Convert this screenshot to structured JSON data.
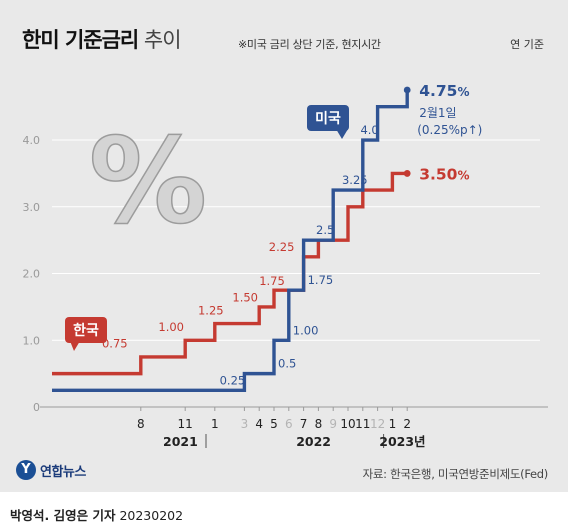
{
  "title": {
    "strong": "한미 기준금리",
    "light": "추이"
  },
  "note": "※미국 금리 상단 기준, 현지시간",
  "unit": "연 기준",
  "percent_symbol": "%",
  "source": "자료: 한국은행, 미국연방준비제도(Fed)",
  "logo": {
    "mark": "Y",
    "text": "연합뉴스"
  },
  "byline": {
    "name": "박영석. 김영은 기자",
    "date": "20230202"
  },
  "colors": {
    "us": "#2f5393",
    "korea": "#c53a31",
    "grid": "#ffffff",
    "background": "#e9e9e9"
  },
  "chart_data": {
    "type": "line",
    "step": true,
    "ylim": [
      0,
      4.75
    ],
    "yticks": [
      "0",
      "1.0",
      "2.0",
      "3.0",
      "4.0"
    ],
    "ytick_values": [
      0,
      1,
      2,
      3,
      4
    ],
    "x_axis": {
      "ticks": [
        {
          "label": "8",
          "month": "2021-08",
          "muted": false
        },
        {
          "label": "11",
          "month": "2021-11",
          "muted": false
        },
        {
          "label": "1",
          "month": "2022-01",
          "muted": false
        },
        {
          "label": "3",
          "month": "2022-03",
          "muted": true
        },
        {
          "label": "4",
          "month": "2022-04",
          "muted": false
        },
        {
          "label": "5",
          "month": "2022-05",
          "muted": false
        },
        {
          "label": "6",
          "month": "2022-06",
          "muted": true
        },
        {
          "label": "7",
          "month": "2022-07",
          "muted": false
        },
        {
          "label": "8",
          "month": "2022-08",
          "muted": false
        },
        {
          "label": "9",
          "month": "2022-09",
          "muted": true
        },
        {
          "label": "10",
          "month": "2022-10",
          "muted": false
        },
        {
          "label": "11",
          "month": "2022-11",
          "muted": false
        },
        {
          "label": "12",
          "month": "2022-12",
          "muted": true
        },
        {
          "label": "1",
          "month": "2023-01",
          "muted": false
        },
        {
          "label": "2",
          "month": "2023-02",
          "muted": false
        }
      ],
      "years": [
        {
          "label": "2021",
          "month": "2021-10"
        },
        {
          "label": "2022",
          "month": "2022-07"
        },
        {
          "label": "2023년",
          "month": "2023-01"
        }
      ]
    },
    "series": [
      {
        "name": "미국",
        "color": "#2f5393",
        "points": [
          {
            "x": "2021-02",
            "y": 0.25
          },
          {
            "x": "2022-03",
            "y": 0.5,
            "label": "0.25"
          },
          {
            "x": "2022-05",
            "y": 1.0,
            "label": "0.5"
          },
          {
            "x": "2022-06",
            "y": 1.75,
            "label": "1.00"
          },
          {
            "x": "2022-07",
            "y": 2.5,
            "label": "1.75"
          },
          {
            "x": "2022-09",
            "y": 3.25,
            "label": "2.5"
          },
          {
            "x": "2022-11",
            "y": 4.0,
            "label": "3.25"
          },
          {
            "x": "2022-12",
            "y": 4.5,
            "label": "4.0"
          },
          {
            "x": "2023-02",
            "y": 4.75
          }
        ],
        "end_label": "4.75",
        "end_unit": "%",
        "end_note": [
          "2월1일",
          "(0.25%p↑)"
        ]
      },
      {
        "name": "한국",
        "color": "#c53a31",
        "points": [
          {
            "x": "2021-02",
            "y": 0.5
          },
          {
            "x": "2021-08",
            "y": 0.75,
            "label": "0.75"
          },
          {
            "x": "2021-11",
            "y": 1.0,
            "label": "1.00"
          },
          {
            "x": "2022-01",
            "y": 1.25,
            "label": "1.25"
          },
          {
            "x": "2022-04",
            "y": 1.5,
            "label": "1.50"
          },
          {
            "x": "2022-05",
            "y": 1.75,
            "label": "1.75"
          },
          {
            "x": "2022-07",
            "y": 2.25,
            "label": "2.25"
          },
          {
            "x": "2022-08",
            "y": 2.5
          },
          {
            "x": "2022-10",
            "y": 3.0
          },
          {
            "x": "2022-11",
            "y": 3.25
          },
          {
            "x": "2023-01",
            "y": 3.5
          },
          {
            "x": "2023-02",
            "y": 3.5
          }
        ],
        "end_label": "3.50",
        "end_unit": "%"
      }
    ]
  }
}
